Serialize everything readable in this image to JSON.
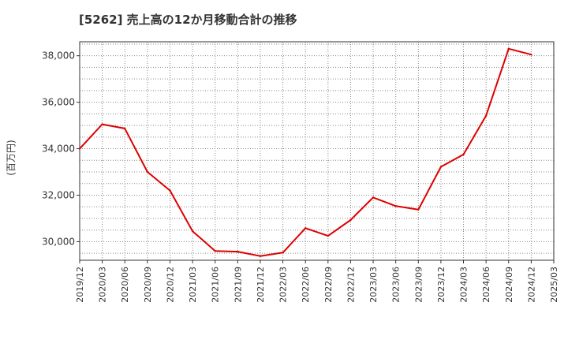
{
  "chart_data": {
    "type": "line",
    "title": "[5262]  売上高の12か月移動合計の推移",
    "ylabel": "(百万円)",
    "xlabel": "",
    "ylim": [
      29200,
      38600
    ],
    "yticks": [
      30000,
      32000,
      34000,
      36000,
      38000
    ],
    "ytick_labels": [
      "30,000",
      "32,000",
      "34,000",
      "36,000",
      "38,000"
    ],
    "x_ticks": [
      "2019/12",
      "2020/03",
      "2020/06",
      "2020/09",
      "2020/12",
      "2021/03",
      "2021/06",
      "2021/09",
      "2021/12",
      "2022/03",
      "2022/06",
      "2022/09",
      "2022/12",
      "2023/03",
      "2023/06",
      "2023/09",
      "2023/12",
      "2024/03",
      "2024/06",
      "2024/09",
      "2024/12",
      "2025/03"
    ],
    "grid": true,
    "series": [
      {
        "name": "売上高",
        "color": "#dd0000",
        "x": [
          "2019/12",
          "2020/03",
          "2020/06",
          "2020/09",
          "2020/12",
          "2021/03",
          "2021/06",
          "2021/09",
          "2021/12",
          "2022/03",
          "2022/06",
          "2022/09",
          "2022/12",
          "2023/03",
          "2023/06",
          "2023/09",
          "2023/12",
          "2024/03",
          "2024/06",
          "2024/09",
          "2024/12"
        ],
        "values": [
          34000,
          35050,
          34870,
          33000,
          32200,
          30450,
          29600,
          29570,
          29380,
          29530,
          30580,
          30250,
          30930,
          31900,
          31530,
          31380,
          33220,
          33750,
          35420,
          38300,
          38050
        ]
      }
    ]
  }
}
